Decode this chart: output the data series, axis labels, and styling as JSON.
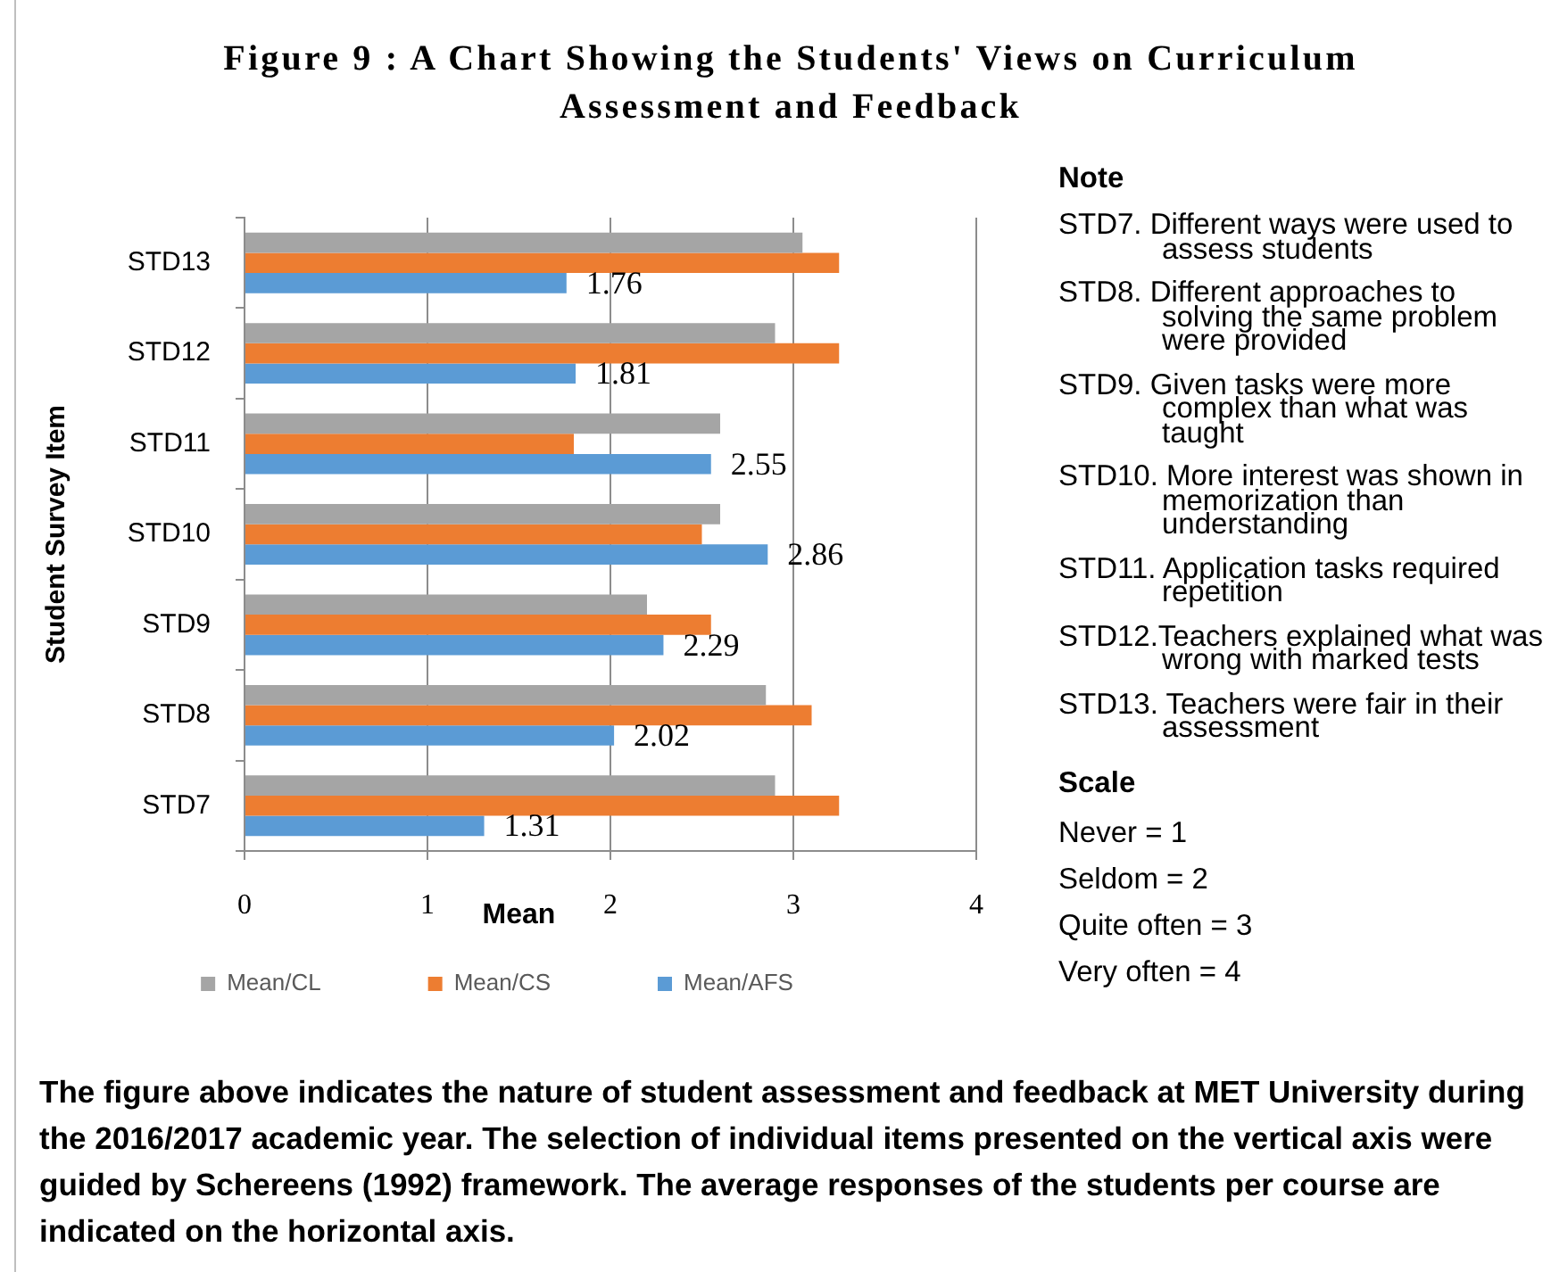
{
  "chart_data": {
    "type": "bar",
    "orientation": "horizontal",
    "title": "Figure 9 : A Chart Showing the Students' Views on Curriculum Assessment and Feedback",
    "xlabel": "Mean",
    "ylabel": "Student Survey Item",
    "categories": [
      "STD13",
      "STD12",
      "STD11",
      "STD10",
      "STD9",
      "STD8",
      "STD7"
    ],
    "series": [
      {
        "name": "Mean/CL",
        "color": "#a5a5a5",
        "values": [
          3.05,
          2.9,
          2.6,
          2.6,
          2.2,
          2.85,
          2.9
        ]
      },
      {
        "name": "Mean/CS",
        "color": "#ed7d31",
        "values": [
          3.25,
          3.25,
          1.8,
          2.5,
          2.55,
          3.1,
          3.25
        ]
      },
      {
        "name": "Mean/AFS",
        "color": "#5b9bd5",
        "values": [
          1.76,
          1.81,
          2.55,
          2.86,
          2.29,
          2.02,
          1.31
        ],
        "value_labels": [
          "1.76",
          "1.81",
          "2.55",
          "2.86",
          "2.29",
          "2.02",
          "1.31"
        ]
      }
    ],
    "xlim": [
      0,
      4
    ],
    "xticks": [
      0,
      1,
      2,
      3,
      4
    ],
    "grid": "x",
    "legend": "bottom",
    "annotations": [
      "Note",
      "STD7. Different ways were used to assess students",
      "STD8. Different approaches to solving the same problem were provided",
      "STD9. Given tasks were more complex than what was taught",
      "STD10. More interest was shown in memorization than understanding",
      "STD11. Application tasks required repetition",
      "STD12.Teachers explained what was wrong with marked tests",
      "STD13. Teachers were fair in their assessment",
      "Scale",
      "Never = 1",
      "Seldom = 2",
      "Quite often = 3",
      "Very often = 4",
      "The figure above indicates the nature of student assessment and feedback at MET University during the 2016/2017 academic year. The selection of individual items presented on the vertical axis were guided by Schereens (1992) framework. The average responses of the students per course are indicated on the horizontal axis."
    ]
  }
}
